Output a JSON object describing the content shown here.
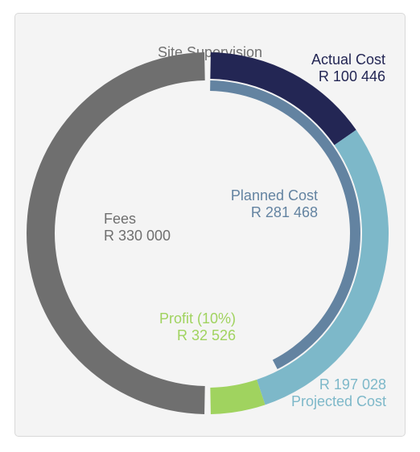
{
  "card": {
    "title": "Site Supervision"
  },
  "chart_data": {
    "type": "pie",
    "title": "Site Supervision",
    "rings": [
      {
        "name": "outer",
        "total": 330000,
        "slices": [
          {
            "label": "Actual Cost",
            "value": 100446,
            "display": "R 100 446",
            "color": "#232654"
          },
          {
            "label": "Projected Cost",
            "value": 197028,
            "display": "R 197 028",
            "color": "#7db8c9"
          },
          {
            "label": "Profit (10%)",
            "value": 32526,
            "display": "R 32 526",
            "color": "#a0d35f"
          }
        ]
      },
      {
        "name": "inner",
        "total": 330000,
        "slices": [
          {
            "label": "Planned Cost",
            "value": 281468,
            "display": "R 281 468",
            "color": "#6383a1"
          }
        ]
      },
      {
        "name": "left",
        "total": 330000,
        "slices": [
          {
            "label": "Fees",
            "value": 330000,
            "display": "R 330 000",
            "color": "#6f6f6f"
          }
        ]
      }
    ]
  },
  "labels": {
    "actual": {
      "name": "Actual Cost",
      "value": "R 100 446",
      "color": "#232654"
    },
    "planned": {
      "name": "Planned Cost",
      "value": "R 281 468",
      "color": "#6383a1"
    },
    "fees": {
      "name": "Fees",
      "value": "R 330 000",
      "color": "#6f6f6f"
    },
    "profit": {
      "name": "Profit (10%)",
      "value": "R 32 526",
      "color": "#a0d35f"
    },
    "projected": {
      "name": "Projected Cost",
      "value": "R 197 028",
      "color": "#7db8c9"
    }
  }
}
